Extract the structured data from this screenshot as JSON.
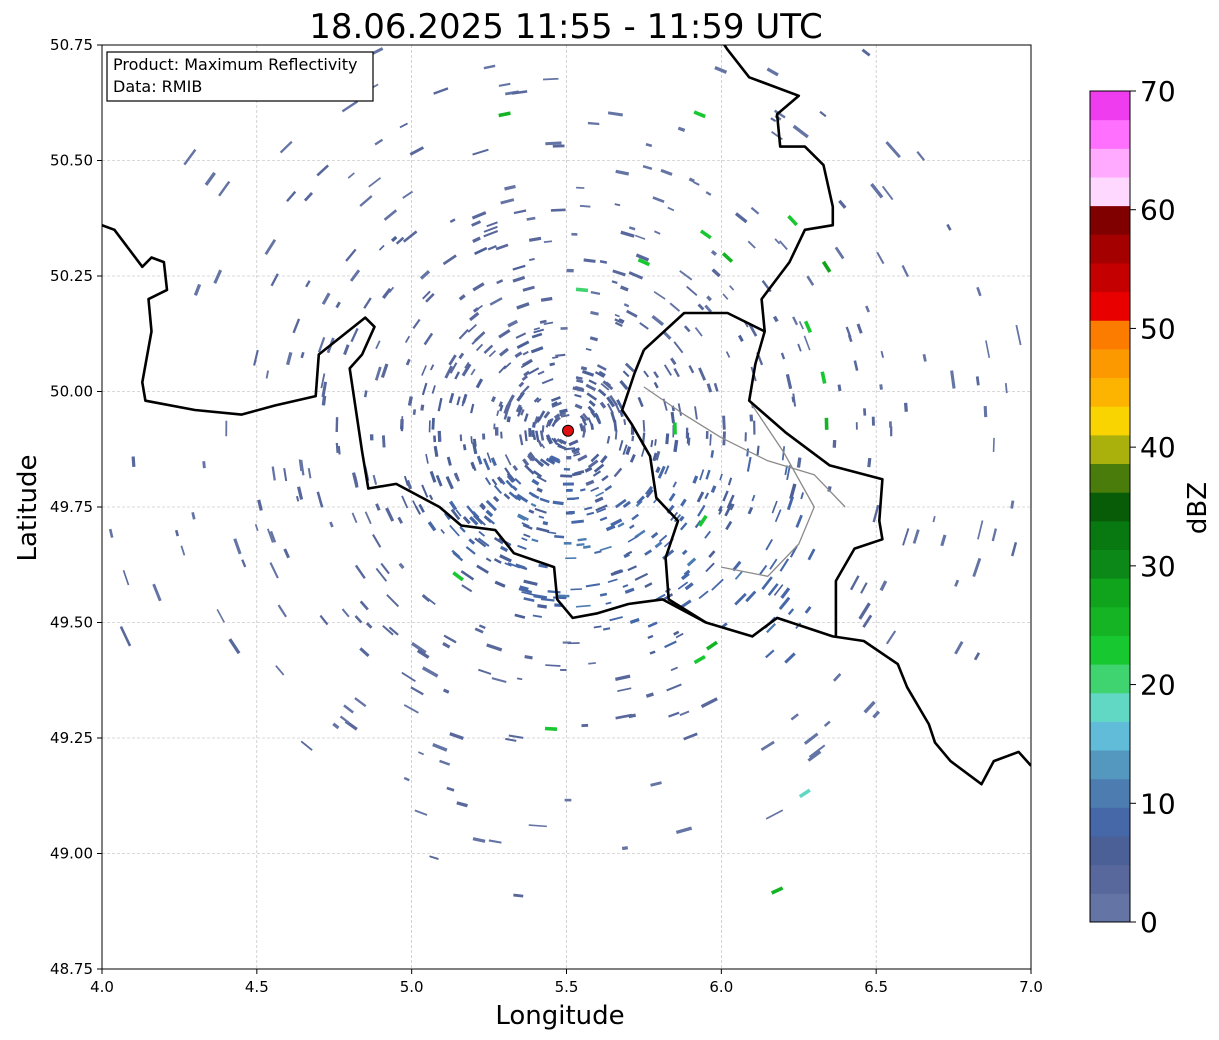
{
  "title": "18.06.2025 11:55 - 11:59 UTC",
  "info_box": {
    "line1": "Product: Maximum Reflectivity",
    "line2": "Data: RMIB"
  },
  "axes": {
    "xlabel": "Longitude",
    "ylabel": "Latitude",
    "xlim": [
      4.0,
      7.0
    ],
    "ylim": [
      48.75,
      50.75
    ],
    "xticks": [
      4.0,
      4.5,
      5.0,
      5.5,
      6.0,
      6.5,
      7.0
    ],
    "yticks": [
      48.75,
      49.0,
      49.25,
      49.5,
      49.75,
      50.0,
      50.25,
      50.5,
      50.75
    ],
    "xtick_labels": [
      "4.0",
      "4.5",
      "5.0",
      "5.5",
      "6.0",
      "6.5",
      "7.0"
    ],
    "ytick_labels": [
      "48.75",
      "49.00",
      "49.25",
      "49.50",
      "49.75",
      "50.00",
      "50.25",
      "50.50",
      "50.75"
    ],
    "grid": true
  },
  "radar_site": {
    "lon": 5.505,
    "lat": 49.915,
    "color": "#e01010"
  },
  "colorbar": {
    "label": "dBZ",
    "min": 0,
    "max": 70,
    "ticks": [
      0,
      10,
      20,
      30,
      40,
      50,
      60,
      70
    ],
    "tick_labels": [
      "0",
      "10",
      "20",
      "30",
      "40",
      "50",
      "60",
      "70"
    ],
    "colors": [
      "#6474a4",
      "#58689c",
      "#4c6098",
      "#4668a8",
      "#4c7cb0",
      "#5498c0",
      "#60bcd8",
      "#60d8c4",
      "#40d470",
      "#18c830",
      "#14b424",
      "#10a41c",
      "#0c8818",
      "#087810",
      "#085c08",
      "#4a7c0c",
      "#aab00c",
      "#fad400",
      "#fcb400",
      "#fc9800",
      "#fc7c00",
      "#e80000",
      "#c40000",
      "#a40000",
      "#800000",
      "#ffd8ff",
      "#ffaaff",
      "#ff70ff",
      "#ee3cee"
    ]
  },
  "borders": {
    "belgium_france": [
      [
        4.0,
        50.36
      ],
      [
        4.04,
        50.35
      ],
      [
        4.13,
        50.27
      ],
      [
        4.16,
        50.29
      ],
      [
        4.2,
        50.28
      ],
      [
        4.21,
        50.22
      ],
      [
        4.15,
        50.2
      ],
      [
        4.16,
        50.13
      ],
      [
        4.13,
        50.02
      ],
      [
        4.14,
        49.98
      ],
      [
        4.3,
        49.96
      ],
      [
        4.45,
        49.95
      ],
      [
        4.56,
        49.97
      ],
      [
        4.69,
        49.99
      ],
      [
        4.7,
        50.08
      ],
      [
        4.85,
        50.16
      ],
      [
        4.88,
        50.14
      ],
      [
        4.84,
        50.08
      ],
      [
        4.8,
        50.05
      ],
      [
        4.82,
        49.96
      ],
      [
        4.84,
        49.87
      ],
      [
        4.86,
        49.79
      ],
      [
        4.95,
        49.8
      ],
      [
        5.09,
        49.75
      ],
      [
        5.16,
        49.71
      ],
      [
        5.27,
        49.7
      ],
      [
        5.33,
        49.65
      ],
      [
        5.46,
        49.62
      ],
      [
        5.47,
        49.55
      ],
      [
        5.52,
        49.51
      ],
      [
        5.6,
        49.52
      ],
      [
        5.7,
        49.54
      ],
      [
        5.81,
        49.55
      ],
      [
        5.95,
        49.5
      ],
      [
        6.1,
        49.47
      ],
      [
        6.18,
        49.51
      ],
      [
        6.36,
        49.47
      ],
      [
        6.46,
        49.46
      ],
      [
        6.57,
        49.41
      ],
      [
        6.6,
        49.36
      ],
      [
        6.67,
        49.28
      ],
      [
        6.69,
        49.24
      ],
      [
        6.74,
        49.2
      ],
      [
        6.84,
        49.15
      ],
      [
        6.88,
        49.2
      ],
      [
        6.96,
        49.22
      ],
      [
        7.0,
        49.19
      ]
    ],
    "belgium_luxembourg": [
      [
        5.75,
        50.09
      ],
      [
        5.88,
        50.17
      ],
      [
        6.02,
        50.17
      ],
      [
        6.14,
        50.13
      ],
      [
        6.11,
        50.06
      ],
      [
        6.09,
        49.98
      ],
      [
        6.21,
        49.91
      ],
      [
        6.35,
        49.84
      ],
      [
        6.52,
        49.81
      ],
      [
        6.51,
        49.72
      ],
      [
        6.52,
        49.68
      ],
      [
        6.43,
        49.66
      ],
      [
        6.37,
        49.59
      ],
      [
        6.37,
        49.47
      ]
    ],
    "belgium_west": [
      [
        5.75,
        50.09
      ],
      [
        5.72,
        50.04
      ],
      [
        5.68,
        49.96
      ],
      [
        5.71,
        49.93
      ],
      [
        5.77,
        49.86
      ],
      [
        5.79,
        49.77
      ],
      [
        5.86,
        49.72
      ],
      [
        5.82,
        49.64
      ],
      [
        5.83,
        49.55
      ],
      [
        5.95,
        49.5
      ]
    ],
    "belgium_germany": [
      [
        6.14,
        50.13
      ],
      [
        6.13,
        50.2
      ],
      [
        6.22,
        50.28
      ],
      [
        6.27,
        50.35
      ],
      [
        6.36,
        50.36
      ],
      [
        6.36,
        50.4
      ],
      [
        6.33,
        50.49
      ],
      [
        6.27,
        50.53
      ],
      [
        6.19,
        50.53
      ],
      [
        6.18,
        50.6
      ],
      [
        6.25,
        50.64
      ],
      [
        6.09,
        50.68
      ],
      [
        6.02,
        50.74
      ],
      [
        6.0,
        50.76
      ]
    ],
    "grey_lines": [
      [
        [
          5.75,
          50.01
        ],
        [
          5.88,
          49.95
        ],
        [
          6.0,
          49.9
        ],
        [
          6.15,
          49.85
        ],
        [
          6.3,
          49.82
        ],
        [
          6.4,
          49.75
        ]
      ],
      [
        [
          6.09,
          49.98
        ],
        [
          6.2,
          49.87
        ],
        [
          6.3,
          49.75
        ],
        [
          6.25,
          49.67
        ],
        [
          6.15,
          49.6
        ],
        [
          6.0,
          49.62
        ]
      ]
    ]
  },
  "echo_points": [
    [
      5.2,
      49.75,
      8
    ],
    [
      5.3,
      49.62,
      8
    ],
    [
      5.4,
      49.68,
      9
    ],
    [
      5.5,
      49.78,
      8
    ],
    [
      5.6,
      49.7,
      9
    ],
    [
      5.7,
      49.63,
      8
    ],
    [
      5.75,
      49.72,
      9
    ],
    [
      5.8,
      49.55,
      8
    ],
    [
      5.9,
      49.62,
      9
    ],
    [
      6.0,
      49.58,
      9
    ],
    [
      6.05,
      49.68,
      8
    ],
    [
      6.1,
      49.52,
      9
    ],
    [
      6.15,
      49.75,
      8
    ],
    [
      6.2,
      49.6,
      9
    ],
    [
      5.35,
      49.95,
      5
    ],
    [
      5.45,
      50.0,
      5
    ],
    [
      5.6,
      50.05,
      5
    ],
    [
      5.7,
      49.88,
      6
    ],
    [
      5.55,
      49.85,
      6
    ],
    [
      5.1,
      49.88,
      6
    ],
    [
      5.0,
      49.95,
      5
    ],
    [
      4.95,
      50.12,
      4
    ],
    [
      5.25,
      50.2,
      4
    ],
    [
      5.55,
      50.25,
      3
    ],
    [
      5.85,
      50.18,
      3
    ],
    [
      6.1,
      50.05,
      4
    ],
    [
      6.3,
      49.95,
      4
    ],
    [
      6.35,
      50.25,
      3
    ],
    [
      4.85,
      49.85,
      4
    ],
    [
      4.75,
      49.65,
      3
    ],
    [
      4.95,
      49.55,
      4
    ],
    [
      5.2,
      49.45,
      4
    ],
    [
      5.45,
      49.35,
      4
    ],
    [
      5.75,
      49.3,
      4
    ],
    [
      6.05,
      49.38,
      4
    ],
    [
      6.4,
      49.55,
      4
    ],
    [
      6.45,
      49.7,
      3
    ],
    [
      4.55,
      50.3,
      3
    ],
    [
      4.6,
      49.95,
      3
    ],
    [
      4.5,
      49.55,
      2
    ],
    [
      4.7,
      49.3,
      2
    ],
    [
      5.1,
      49.15,
      2
    ],
    [
      5.5,
      49.12,
      2
    ],
    [
      5.9,
      49.1,
      2
    ],
    [
      6.3,
      49.25,
      2
    ],
    [
      6.55,
      49.45,
      2
    ],
    [
      6.7,
      49.9,
      2
    ],
    [
      6.6,
      50.2,
      2
    ],
    [
      6.3,
      50.45,
      2
    ],
    [
      5.9,
      50.58,
      2
    ],
    [
      5.4,
      50.58,
      2
    ],
    [
      4.9,
      50.55,
      2
    ],
    [
      4.4,
      50.4,
      2
    ],
    [
      4.2,
      50.1,
      2
    ],
    [
      4.25,
      49.75,
      2
    ],
    [
      4.45,
      49.35,
      2
    ],
    [
      4.9,
      49.05,
      2
    ],
    [
      5.3,
      48.95,
      2
    ],
    [
      5.7,
      48.92,
      2
    ],
    [
      6.1,
      48.95,
      2
    ]
  ],
  "green_echoes": [
    [
      5.97,
      49.45,
      25
    ],
    [
      5.93,
      49.42,
      22
    ],
    [
      6.34,
      50.27,
      28
    ],
    [
      6.28,
      50.14,
      24
    ],
    [
      6.34,
      49.93,
      26
    ],
    [
      5.85,
      49.92,
      23
    ],
    [
      6.33,
      50.03,
      22
    ],
    [
      5.55,
      50.22,
      21
    ],
    [
      5.75,
      50.28,
      22
    ],
    [
      5.95,
      50.34,
      23
    ],
    [
      6.23,
      50.37,
      22
    ],
    [
      5.15,
      49.6,
      24
    ],
    [
      5.94,
      49.72,
      22
    ],
    [
      6.27,
      49.13,
      18
    ],
    [
      6.18,
      48.92,
      26
    ],
    [
      5.3,
      50.6,
      26
    ],
    [
      5.93,
      50.6,
      24
    ],
    [
      6.02,
      50.29,
      25
    ],
    [
      5.45,
      49.27,
      22
    ]
  ],
  "colors": {
    "border": "#000000",
    "grey_border": "#8a8a8a",
    "grid": "#b4b4b4"
  }
}
